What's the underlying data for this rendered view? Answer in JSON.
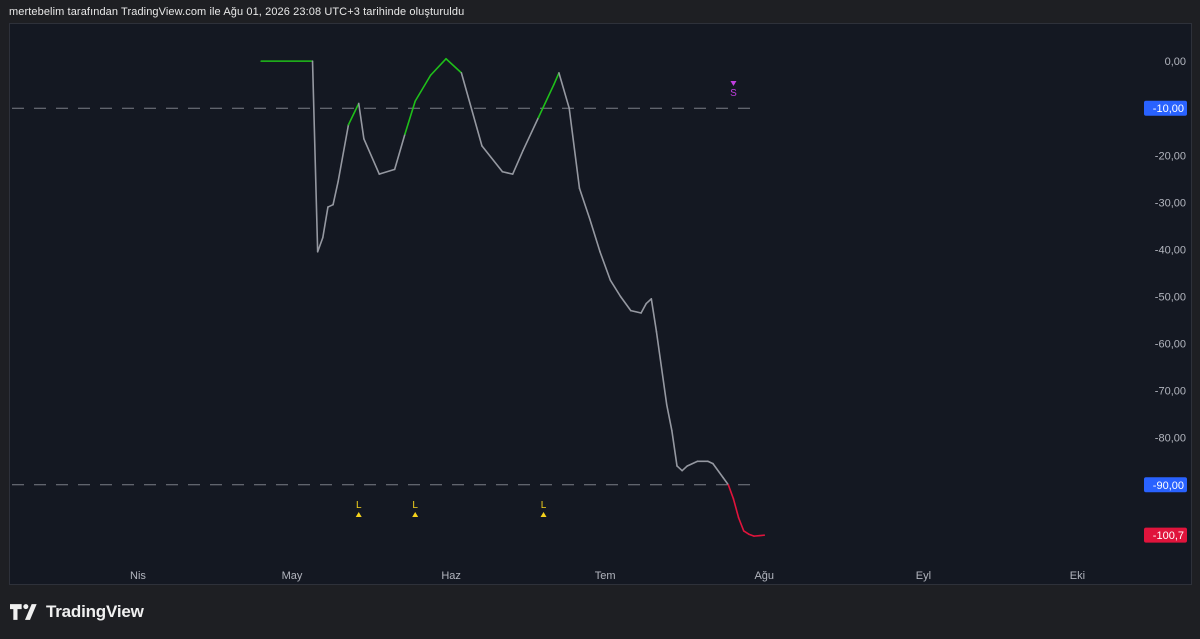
{
  "header": {
    "caption": "mertebelim tarafından TradingView.com ile Ağu 01, 2026 23:08 UTC+3 tarihinde oluşturuldu"
  },
  "footer": {
    "brand": "TradingView"
  },
  "colors": {
    "background": "#141822",
    "line_neutral": "#9598a1",
    "line_green": "#1fbf1a",
    "line_red": "#e0143c",
    "signal_long": "#f5d21c",
    "signal_short": "#c13fe0",
    "level_badge": "#2962ff",
    "price_badge": "#e0143c"
  },
  "chart_data": {
    "type": "line",
    "ylim": [
      -103,
      3
    ],
    "y_ticks": [
      "0,00",
      "-20,00",
      "-30,00",
      "-40,00",
      "-50,00",
      "-60,00",
      "-70,00",
      "-80,00"
    ],
    "y_tick_values": [
      0,
      -20,
      -30,
      -40,
      -50,
      -60,
      -70,
      -80
    ],
    "x_ticks": [
      {
        "label": "Nis",
        "date": "2026-04-01"
      },
      {
        "label": "May",
        "date": "2026-05-01"
      },
      {
        "label": "Haz",
        "date": "2026-06-01"
      },
      {
        "label": "Tem",
        "date": "2026-07-01"
      },
      {
        "label": "Ağu",
        "date": "2026-08-01"
      },
      {
        "label": "Eyl",
        "date": "2026-09-01"
      },
      {
        "label": "Eki",
        "date": "2026-10-01"
      }
    ],
    "levels": [
      {
        "value": -10,
        "label": "-10,00"
      },
      {
        "value": -90,
        "label": "-90,00"
      }
    ],
    "last_value": {
      "value": -100.7,
      "label": "-100,7"
    },
    "series": [
      {
        "points": [
          [
            "2026-04-25",
            0
          ],
          [
            "2026-05-05",
            0
          ],
          [
            "2026-05-06",
            -40.5
          ],
          [
            "2026-05-07",
            -37.5
          ],
          [
            "2026-05-08",
            -31
          ],
          [
            "2026-05-09",
            -30.5
          ],
          [
            "2026-05-10",
            -25.5
          ],
          [
            "2026-05-12",
            -13.5
          ],
          [
            "2026-05-14",
            -9
          ],
          [
            "2026-05-15",
            -16.5
          ],
          [
            "2026-05-18",
            -24
          ],
          [
            "2026-05-21",
            -23
          ],
          [
            "2026-05-23",
            -15.5
          ],
          [
            "2026-05-25",
            -8.5
          ],
          [
            "2026-05-28",
            -3
          ],
          [
            "2026-05-31",
            0.5
          ],
          [
            "2026-06-03",
            -2.5
          ],
          [
            "2026-06-07",
            -18
          ],
          [
            "2026-06-11",
            -23.5
          ],
          [
            "2026-06-13",
            -24
          ],
          [
            "2026-06-15",
            -19
          ],
          [
            "2026-06-18",
            -12
          ],
          [
            "2026-06-21",
            -5
          ],
          [
            "2026-06-22",
            -2.5
          ],
          [
            "2026-06-24",
            -10
          ],
          [
            "2026-06-26",
            -27
          ],
          [
            "2026-06-28",
            -33.5
          ],
          [
            "2026-06-30",
            -40.5
          ],
          [
            "2026-07-02",
            -46.5
          ],
          [
            "2026-07-04",
            -50
          ],
          [
            "2026-07-06",
            -53
          ],
          [
            "2026-07-08",
            -53.5
          ],
          [
            "2026-07-09",
            -51.5
          ],
          [
            "2026-07-10",
            -50.5
          ],
          [
            "2026-07-11",
            -57.5
          ],
          [
            "2026-07-13",
            -73
          ],
          [
            "2026-07-14",
            -78.5
          ],
          [
            "2026-07-15",
            -86
          ],
          [
            "2026-07-16",
            -87
          ],
          [
            "2026-07-17",
            -86
          ],
          [
            "2026-07-19",
            -85
          ],
          [
            "2026-07-21",
            -85
          ],
          [
            "2026-07-22",
            -85.5
          ],
          [
            "2026-07-24",
            -88.5
          ],
          [
            "2026-07-25",
            -90
          ],
          [
            "2026-07-26",
            -93
          ],
          [
            "2026-07-27",
            -97
          ],
          [
            "2026-07-28",
            -99.8
          ],
          [
            "2026-07-29",
            -100.5
          ],
          [
            "2026-07-30",
            -100.9
          ],
          [
            "2026-07-31",
            -100.8
          ],
          [
            "2026-08-01",
            -100.7
          ]
        ],
        "green_segments": [
          [
            "2026-05-12",
            "2026-05-14"
          ],
          [
            "2026-05-23",
            "2026-06-03"
          ],
          [
            "2026-06-18",
            "2026-06-22"
          ]
        ],
        "red_segments": [
          [
            "2026-07-25",
            "2026-08-01"
          ]
        ]
      }
    ],
    "signals": [
      {
        "type": "long",
        "label": "L",
        "date": "2026-05-14"
      },
      {
        "type": "long",
        "label": "L",
        "date": "2026-05-25"
      },
      {
        "type": "long",
        "label": "L",
        "date": "2026-06-19"
      },
      {
        "type": "short",
        "label": "S",
        "date": "2026-07-26"
      }
    ]
  }
}
